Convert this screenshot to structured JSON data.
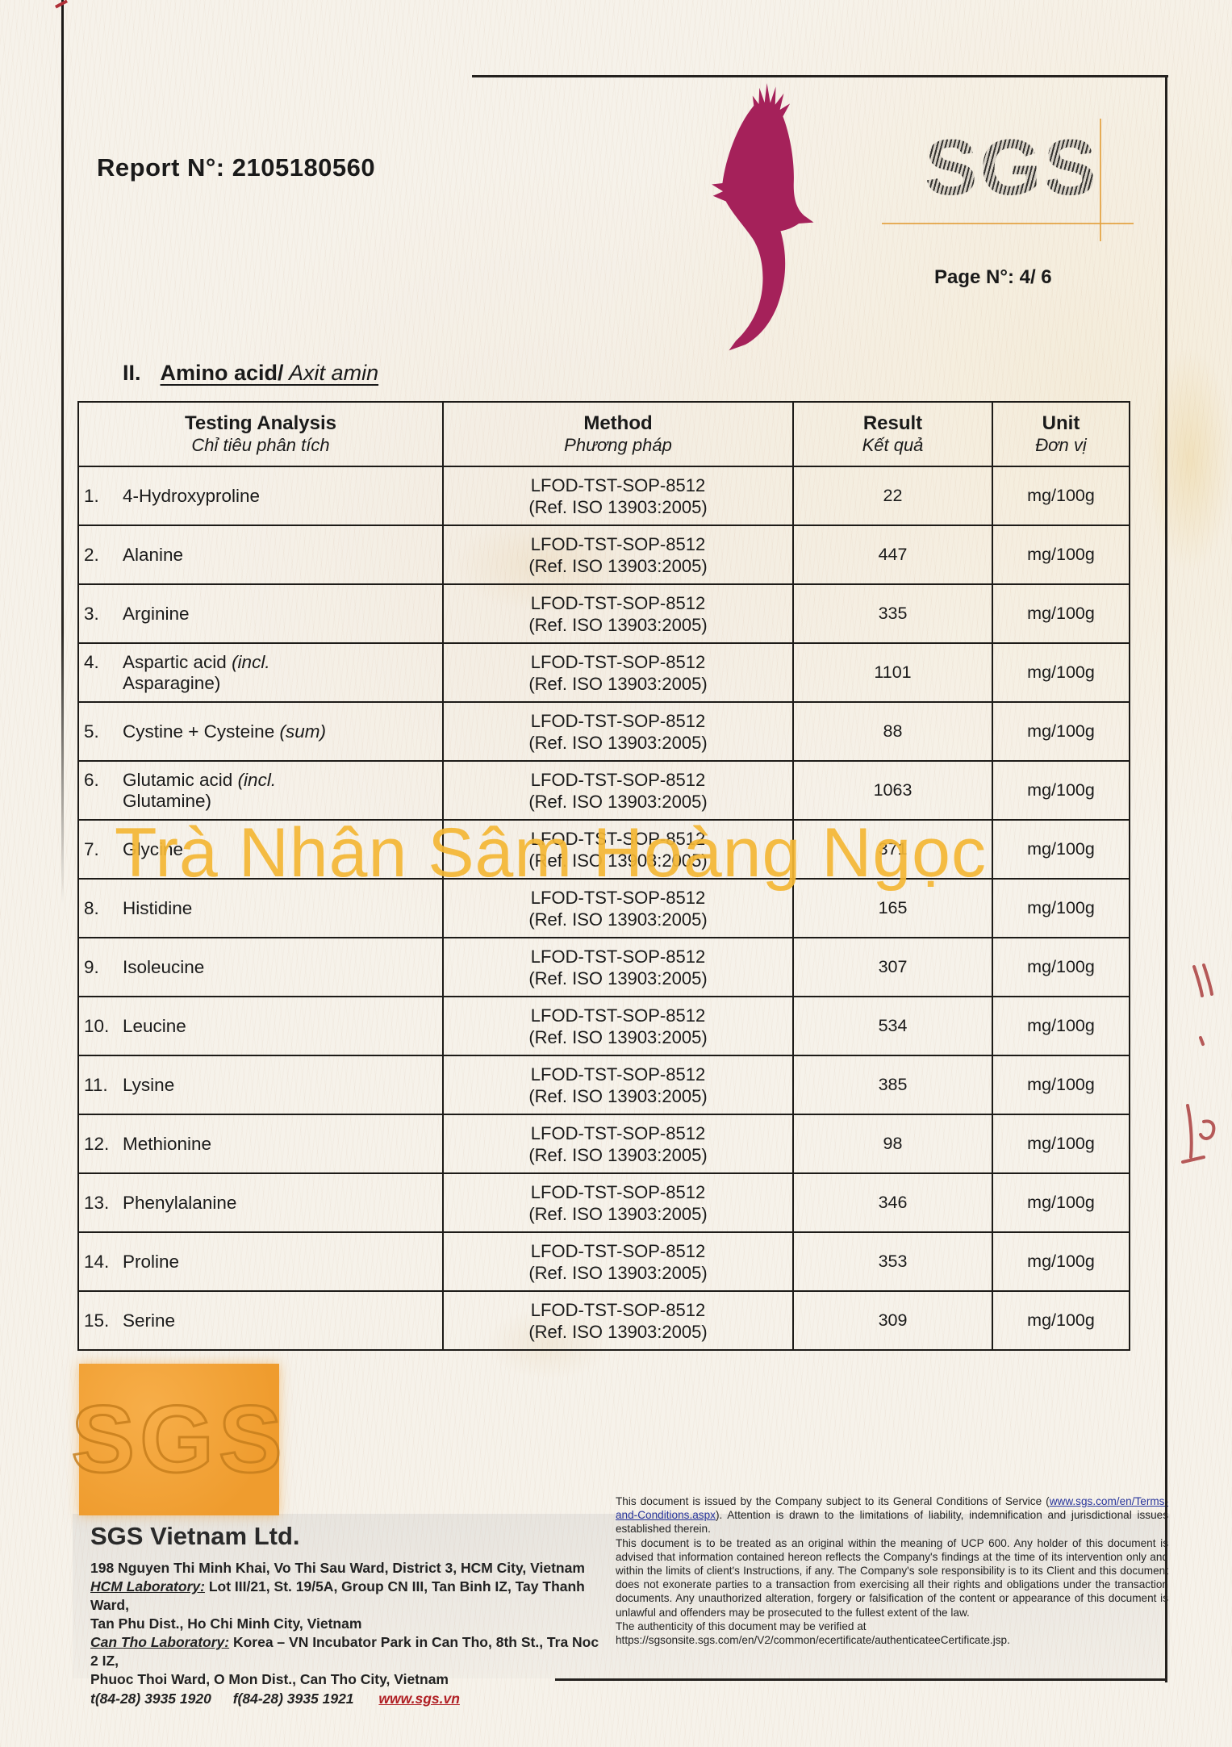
{
  "report": {
    "label": "Report N°:",
    "number": "2105180560"
  },
  "page_number": "Page N°: 4/ 6",
  "sgs_logo_text": "SGS",
  "sgs_stamp_text": "SGS",
  "section": {
    "numeral": "II.",
    "title_en": "Amino acid/",
    "title_vi": " Axit amin"
  },
  "table": {
    "columns": [
      {
        "en": "Testing Analysis",
        "vi": "Chỉ tiêu phân tích"
      },
      {
        "en": "Method",
        "vi": "Phương pháp"
      },
      {
        "en": "Result",
        "vi": "Kết quả"
      },
      {
        "en": "Unit",
        "vi": "Đơn vị"
      }
    ],
    "method": {
      "line1": "LFOD-TST-SOP-8512",
      "line2": "(Ref. ISO 13903:2005)"
    },
    "rows": [
      {
        "no": "1.",
        "name": "4-Hydroxyproline",
        "italic": "",
        "line2": "",
        "result": "22",
        "unit": "mg/100g"
      },
      {
        "no": "2.",
        "name": "Alanine",
        "italic": "",
        "line2": "",
        "result": "447",
        "unit": "mg/100g"
      },
      {
        "no": "3.",
        "name": "Arginine",
        "italic": "",
        "line2": "",
        "result": "335",
        "unit": "mg/100g"
      },
      {
        "no": "4.",
        "name": "Aspartic acid ",
        "italic": "(incl.",
        "line2": "Asparagine)",
        "result": "1101",
        "unit": "mg/100g"
      },
      {
        "no": "5.",
        "name": "Cystine + Cysteine ",
        "italic": "(sum)",
        "line2": "",
        "result": "88",
        "unit": "mg/100g"
      },
      {
        "no": "6.",
        "name": "Glutamic acid ",
        "italic": "(incl.",
        "line2": "Glutamine)",
        "result": "1063",
        "unit": "mg/100g"
      },
      {
        "no": "7.",
        "name": "Glycine",
        "italic": "",
        "line2": "",
        "result": "371",
        "unit": "mg/100g"
      },
      {
        "no": "8.",
        "name": "Histidine",
        "italic": "",
        "line2": "",
        "result": "165",
        "unit": "mg/100g"
      },
      {
        "no": "9.",
        "name": "Isoleucine",
        "italic": "",
        "line2": "",
        "result": "307",
        "unit": "mg/100g"
      },
      {
        "no": "10.",
        "name": "Leucine",
        "italic": "",
        "line2": "",
        "result": "534",
        "unit": "mg/100g"
      },
      {
        "no": "11.",
        "name": "Lysine",
        "italic": "",
        "line2": "",
        "result": "385",
        "unit": "mg/100g"
      },
      {
        "no": "12.",
        "name": "Methionine",
        "italic": "",
        "line2": "",
        "result": "98",
        "unit": "mg/100g"
      },
      {
        "no": "13.",
        "name": "Phenylalanine",
        "italic": "",
        "line2": "",
        "result": "346",
        "unit": "mg/100g"
      },
      {
        "no": "14.",
        "name": "Proline",
        "italic": "",
        "line2": "",
        "result": "353",
        "unit": "mg/100g"
      },
      {
        "no": "15.",
        "name": "Serine",
        "italic": "",
        "line2": "",
        "result": "309",
        "unit": "mg/100g"
      }
    ]
  },
  "watermark": "Trà Nhân Sâm Hoàng Ngọc",
  "company": {
    "name": "SGS Vietnam Ltd.",
    "address_line1": "198 Nguyen Thi Minh Khai, Vo Thi Sau Ward, District 3, HCM City, Vietnam",
    "hcm_lab_label": "HCM Laboratory:",
    "hcm_lab_text": " Lot III/21, St. 19/5A, Group CN III, Tan Binh IZ, Tay Thanh Ward,",
    "hcm_lab_line2": "Tan Phu Dist., Ho Chi Minh City, Vietnam",
    "cantho_lab_label": "Can Tho Laboratory:",
    "cantho_lab_text": " Korea – VN Incubator Park in Can Tho, 8th St., Tra Noc 2 IZ,",
    "cantho_lab_line2": "Phuoc Thoi Ward, O Mon Dist., Can Tho City, Vietnam",
    "phone": "t(84-28) 3935 1920",
    "fax": "f(84-28) 3935 1921",
    "website": "www.sgs.vn"
  },
  "legal": {
    "para1_before": "This document is issued by the Company subject to its General Conditions of Service (",
    "para1_link": "www.sgs.com/en/Terms-and-Conditions.aspx",
    "para1_after": "). Attention is drawn to the limitations of liability, indemnification and jurisdictional issues established therein.",
    "para2": "This document is to be treated as an original within the meaning of UCP 600. Any holder of this document is advised that information contained hereon reflects the Company's findings at the time of its intervention only and within the limits of client's Instructions, if any. The Company's sole responsibility is to its Client and this document does not exonerate parties to a transaction from exercising all their rights and obligations under the transaction documents. Any unauthorized alteration, forgery or falsification of the content or appearance of this document is unlawful and offenders may be prosecuted to the fullest extent of the law.",
    "para3": "The authenticity of this document may be verified at",
    "para4": "https://sgsonsite.sgs.com/en/V2/common/ecertificate/authenticateeCertificate.jsp."
  },
  "colors": {
    "accent_magenta": "#a5215a",
    "stamp_orange": "#f2a43b",
    "watermark_gold": "#f3b634",
    "link_blue": "#27349b",
    "link_red": "#b01f24"
  }
}
